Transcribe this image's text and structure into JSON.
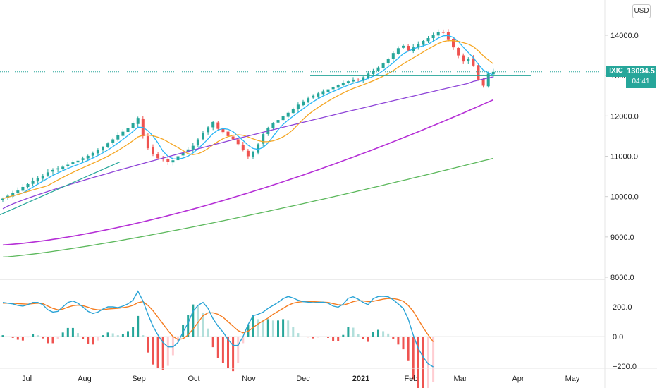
{
  "currency_label": "USD",
  "symbol_tag": "IXIC",
  "last_price": "13094.5",
  "countdown": "04:41",
  "colors": {
    "up": "#26a69a",
    "down": "#ef5350",
    "ma_blue": "#29b6f6",
    "ma_orange": "#f5a623",
    "ma_purple": "#8e44d8",
    "ma_magenta": "#b52fd6",
    "ma_green": "#5cb85c",
    "macd_line": "#29a3d6",
    "signal_line": "#f57c20"
  },
  "chart_data": [
    {
      "type": "candlestick",
      "title": "",
      "ylim": [
        8000,
        14600
      ],
      "ytick_values": [
        8000,
        9000,
        10000,
        11000,
        12000,
        13000,
        14000
      ],
      "ytick_labels": [
        "8000.0",
        "9000.0",
        "10000.0",
        "11000.0",
        "12000.0",
        "13000.0",
        "14000.0"
      ],
      "x_labels": [
        "Jul",
        "Aug",
        "Sep",
        "Oct",
        "Nov",
        "Dec",
        "2021",
        "Feb",
        "Mar",
        "Apr",
        "May"
      ],
      "ohlc_close": [
        9950,
        10020,
        10090,
        10150,
        10240,
        10310,
        10390,
        10450,
        10520,
        10600,
        10660,
        10700,
        10740,
        10790,
        10850,
        10890,
        10950,
        11010,
        11080,
        11150,
        11230,
        11320,
        11420,
        11520,
        11610,
        11700,
        11820,
        11950,
        11500,
        11200,
        11050,
        10950,
        10930,
        10860,
        10900,
        11000,
        11080,
        11170,
        11260,
        11420,
        11580,
        11720,
        11850,
        11680,
        11600,
        11500,
        11420,
        11300,
        11150,
        11000,
        11100,
        11300,
        11550,
        11700,
        11820,
        11900,
        11990,
        12080,
        12180,
        12280,
        12360,
        12440,
        12500,
        12560,
        12610,
        12660,
        12710,
        12760,
        12820,
        12860,
        12900,
        12880,
        12960,
        13050,
        13120,
        13200,
        13300,
        13420,
        13560,
        13680,
        13740,
        13620,
        13700,
        13780,
        13860,
        13930,
        14000,
        14080,
        14060,
        13900,
        13700,
        13500,
        13350,
        13420,
        13250,
        12900,
        12750,
        13050,
        13094
      ],
      "moving_averages": [
        {
          "name": "",
          "color": "#29b6f6"
        },
        {
          "name": "",
          "color": "#f5a623"
        },
        {
          "name": "",
          "color": "#8e44d8"
        },
        {
          "name": "",
          "color": "#b52fd6"
        },
        {
          "name": "",
          "color": "#5cb85c"
        }
      ],
      "price_line": 13094.5,
      "horizontal_levels": [
        13000,
        12980
      ]
    },
    {
      "type": "macd",
      "title": "",
      "ylim": [
        -250,
        350
      ],
      "ytick_values": [
        -200,
        0,
        200
      ],
      "ytick_labels": [
        "−200.0",
        "0.0",
        "200.0"
      ],
      "macd": [
        230,
        225,
        220,
        210,
        205,
        215,
        230,
        230,
        215,
        180,
        165,
        170,
        200,
        230,
        240,
        225,
        200,
        170,
        155,
        165,
        185,
        200,
        200,
        195,
        205,
        220,
        245,
        305,
        240,
        150,
        70,
        10,
        -40,
        -70,
        -70,
        -40,
        30,
        90,
        170,
        210,
        230,
        190,
        120,
        70,
        30,
        -20,
        -60,
        -60,
        0,
        80,
        140,
        150,
        165,
        190,
        210,
        230,
        255,
        270,
        260,
        245,
        235,
        232,
        228,
        230,
        232,
        225,
        205,
        198,
        218,
        258,
        268,
        252,
        230,
        215,
        255,
        270,
        272,
        268,
        248,
        220,
        190,
        118,
        10,
        -80,
        -140,
        -185,
        -205
      ],
      "signal": [
        225,
        225,
        225,
        222,
        220,
        218,
        222,
        225,
        222,
        205,
        190,
        180,
        185,
        198,
        208,
        212,
        208,
        198,
        185,
        180,
        180,
        185,
        188,
        190,
        195,
        200,
        210,
        228,
        235,
        210,
        175,
        130,
        85,
        40,
        0,
        -20,
        -15,
        10,
        50,
        95,
        140,
        160,
        160,
        150,
        130,
        100,
        70,
        40,
        25,
        35,
        60,
        85,
        105,
        125,
        150,
        170,
        190,
        210,
        225,
        232,
        235,
        235,
        235,
        234,
        232,
        230,
        222,
        215,
        212,
        222,
        235,
        242,
        240,
        235,
        238,
        245,
        252,
        257,
        256,
        250,
        238,
        210,
        170,
        115,
        60,
        10,
        -35
      ]
    }
  ]
}
